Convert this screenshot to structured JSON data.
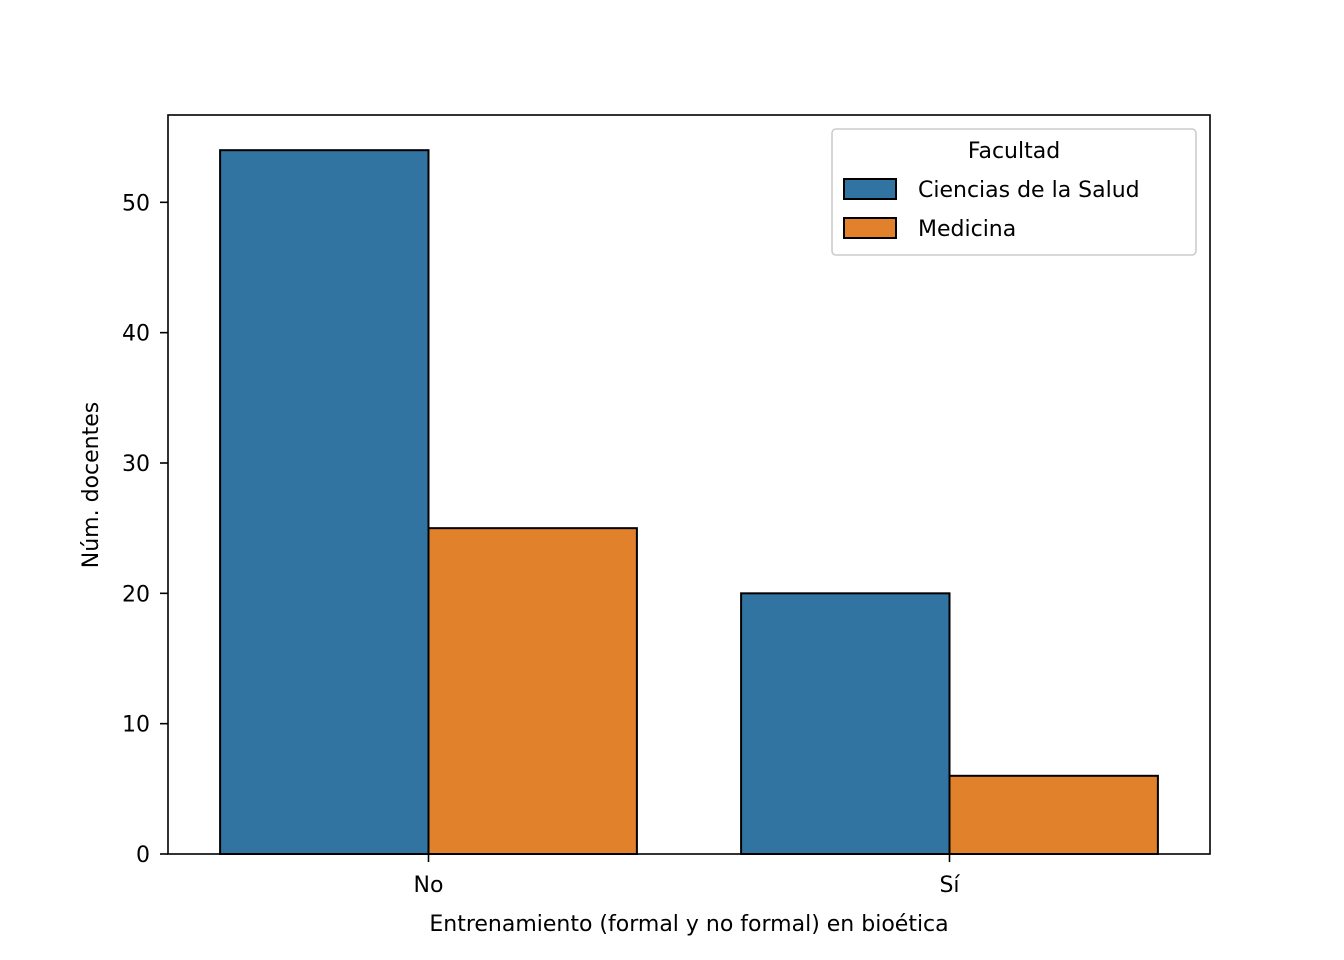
{
  "chart_data": {
    "type": "bar",
    "categories": [
      "No",
      "Sí"
    ],
    "series": [
      {
        "name": "Ciencias de la Salud",
        "values": [
          54,
          20
        ],
        "color": "#3274a1"
      },
      {
        "name": "Medicina",
        "values": [
          25,
          6
        ],
        "color": "#e1812c"
      }
    ],
    "title": "",
    "xlabel": "Entrenamiento (formal y no formal) en bioética",
    "ylabel": "Núm. docentes",
    "ylim": [
      0,
      56.7
    ],
    "yticks": [
      0,
      10,
      20,
      30,
      40,
      50
    ],
    "legend": {
      "title": "Facultad",
      "position": "top-right"
    },
    "grid": false
  }
}
